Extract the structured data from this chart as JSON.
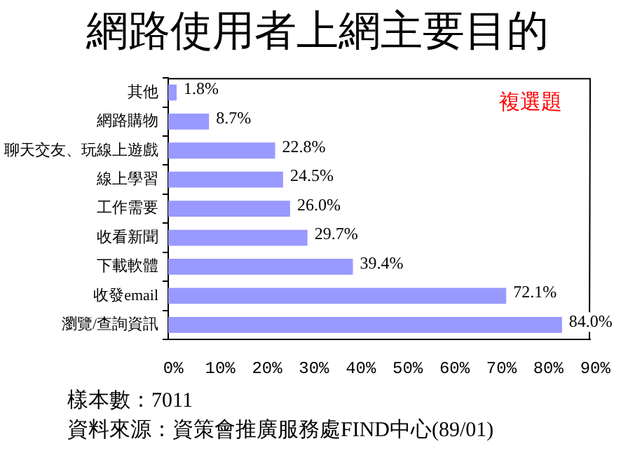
{
  "chart_data": {
    "type": "bar",
    "orientation": "horizontal",
    "title": "網路使用者上網主要目的",
    "categories": [
      "其他",
      "網路購物",
      "聊天交友、玩線上遊戲",
      "線上學習",
      "工作需要",
      "收看新聞",
      "下載軟體",
      "收發email",
      "瀏覽/查詢資訊"
    ],
    "values": [
      1.8,
      8.7,
      22.8,
      24.5,
      26.0,
      29.7,
      39.4,
      72.1,
      84.0
    ],
    "value_labels": [
      "1.8%",
      "8.7%",
      "22.8%",
      "24.5%",
      "26.0%",
      "29.7%",
      "39.4%",
      "72.1%",
      "84.0%"
    ],
    "color": "#9999ff",
    "xlim": [
      0,
      90
    ],
    "xticks": [
      {
        "value": 0,
        "label": "0%"
      },
      {
        "value": 10,
        "label": "10%"
      },
      {
        "value": 20,
        "label": "20%"
      },
      {
        "value": 30,
        "label": "30%"
      },
      {
        "value": 40,
        "label": "40%"
      },
      {
        "value": 50,
        "label": "50%"
      },
      {
        "value": 60,
        "label": "60%"
      },
      {
        "value": 70,
        "label": "70%"
      },
      {
        "value": 80,
        "label": "80%"
      },
      {
        "value": 90,
        "label": "90%"
      }
    ],
    "grid": false,
    "legend": false,
    "annotations": [
      "複選題",
      "樣本數：7011",
      "資料來源：資策會推廣服務處FIND中心(89/01)"
    ]
  }
}
